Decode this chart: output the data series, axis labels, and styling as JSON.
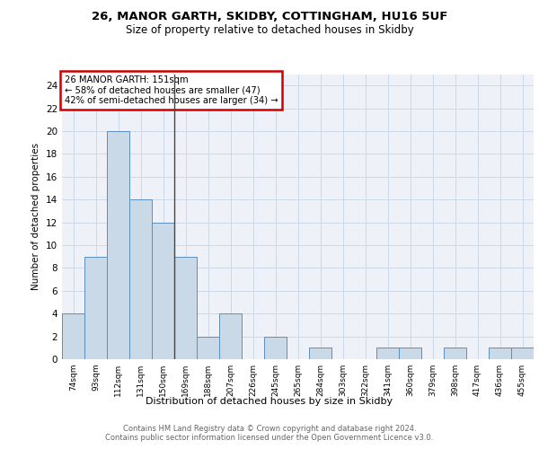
{
  "title1": "26, MANOR GARTH, SKIDBY, COTTINGHAM, HU16 5UF",
  "title2": "Size of property relative to detached houses in Skidby",
  "xlabel": "Distribution of detached houses by size in Skidby",
  "ylabel": "Number of detached properties",
  "categories": [
    "74sqm",
    "93sqm",
    "112sqm",
    "131sqm",
    "150sqm",
    "169sqm",
    "188sqm",
    "207sqm",
    "226sqm",
    "245sqm",
    "265sqm",
    "284sqm",
    "303sqm",
    "322sqm",
    "341sqm",
    "360sqm",
    "379sqm",
    "398sqm",
    "417sqm",
    "436sqm",
    "455sqm"
  ],
  "values": [
    4,
    9,
    20,
    14,
    12,
    9,
    2,
    4,
    0,
    2,
    0,
    1,
    0,
    0,
    1,
    1,
    0,
    1,
    0,
    1,
    1
  ],
  "bar_color": "#c9d9e8",
  "bar_edge_color": "#5a8fc2",
  "subject_line_color": "#444444",
  "annotation_text": "26 MANOR GARTH: 151sqm\n← 58% of detached houses are smaller (47)\n42% of semi-detached houses are larger (34) →",
  "annotation_box_color": "#ffffff",
  "annotation_box_edge": "#cc0000",
  "ylim": [
    0,
    25
  ],
  "yticks": [
    0,
    2,
    4,
    6,
    8,
    10,
    12,
    14,
    16,
    18,
    20,
    22,
    24
  ],
  "footer": "Contains HM Land Registry data © Crown copyright and database right 2024.\nContains public sector information licensed under the Open Government Licence v3.0.",
  "grid_color": "#ccd8e8",
  "bg_color": "#eef2f8"
}
